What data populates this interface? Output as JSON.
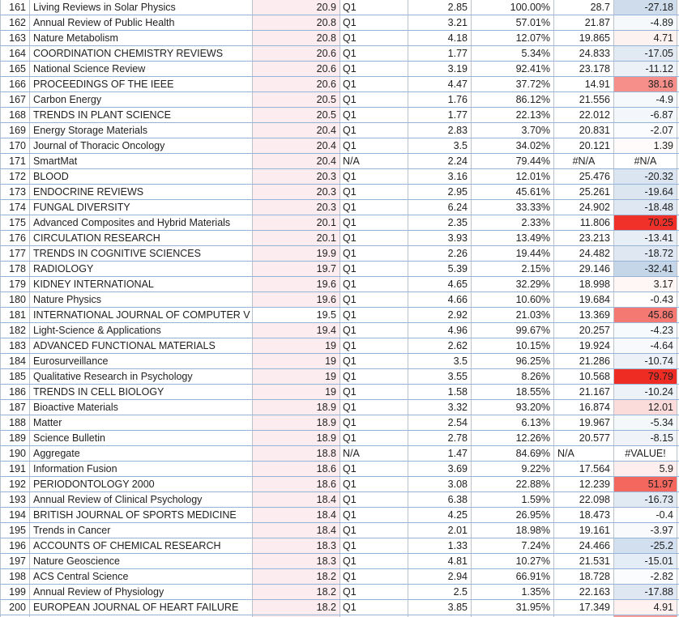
{
  "colors": {
    "score_fill": "#fcecef",
    "grid_horizontal": "#95b3d7",
    "grid_vertical": "#bcc2ca",
    "text": "#1f1f1f",
    "change_red_max": "#ee2c23",
    "change_blue_max": "#c5d6e9"
  },
  "table": {
    "rows": [
      {
        "rank": "161",
        "journal": "Living Reviews in Solar Physics",
        "impact": "20.9",
        "quartile": "Q1",
        "value1": "2.85",
        "percent": "100.00%",
        "value2": "28.7",
        "change": "-27.18",
        "change_bg": "#cfdcec"
      },
      {
        "rank": "162",
        "journal": "Annual Review of Public Health",
        "impact": "20.8",
        "quartile": "Q1",
        "value1": "3.21",
        "percent": "57.01%",
        "value2": "21.87",
        "change": "-4.89",
        "change_bg": "#f6f9fc"
      },
      {
        "rank": "163",
        "journal": "Nature Metabolism",
        "impact": "20.8",
        "quartile": "Q1",
        "value1": "4.18",
        "percent": "12.07%",
        "value2": "19.865",
        "change": "4.71",
        "change_bg": "#fef2f1"
      },
      {
        "rank": "164",
        "journal": "COORDINATION CHEMISTRY REVIEWS",
        "impact": "20.6",
        "quartile": "Q1",
        "value1": "1.77",
        "percent": "5.34%",
        "value2": "24.833",
        "change": "-17.05",
        "change_bg": "#e1e9f3"
      },
      {
        "rank": "165",
        "journal": "National Science Review",
        "impact": "20.6",
        "quartile": "Q1",
        "value1": "3.19",
        "percent": "92.41%",
        "value2": "23.178",
        "change": "-11.12",
        "change_bg": "#ebf1f7"
      },
      {
        "rank": "166",
        "journal": "PROCEEDINGS OF THE IEEE",
        "impact": "20.6",
        "quartile": "Q1",
        "value1": "4.47",
        "percent": "37.72%",
        "value2": "14.91",
        "change": "38.16",
        "change_bg": "#f68f8a"
      },
      {
        "rank": "167",
        "journal": "Carbon Energy",
        "impact": "20.5",
        "quartile": "Q1",
        "value1": "1.76",
        "percent": "86.12%",
        "value2": "21.556",
        "change": "-4.9",
        "change_bg": "#f6f9fc"
      },
      {
        "rank": "168",
        "journal": "TRENDS IN PLANT SCIENCE",
        "impact": "20.5",
        "quartile": "Q1",
        "value1": "1.77",
        "percent": "22.13%",
        "value2": "22.012",
        "change": "-6.87",
        "change_bg": "#f3f6fa"
      },
      {
        "rank": "169",
        "journal": "Energy Storage Materials",
        "impact": "20.4",
        "quartile": "Q1",
        "value1": "2.83",
        "percent": "3.70%",
        "value2": "20.831",
        "change": "-2.07",
        "change_bg": "#fbfcfe"
      },
      {
        "rank": "170",
        "journal": "Journal of Thoracic Oncology",
        "impact": "20.4",
        "quartile": "Q1",
        "value1": "3.5",
        "percent": "34.02%",
        "value2": "20.121",
        "change": "1.39",
        "change_bg": "#fffbfb"
      },
      {
        "rank": "171",
        "journal": "SmartMat",
        "impact": "20.4",
        "quartile": "N/A",
        "value1": "2.24",
        "percent": "79.44%",
        "value2": "#N/A",
        "change": "#N/A",
        "change_bg": "#ffffff",
        "value2_align": "center",
        "change_align": "center"
      },
      {
        "rank": "172",
        "journal": "BLOOD",
        "impact": "20.3",
        "quartile": "Q1",
        "value1": "3.16",
        "percent": "12.01%",
        "value2": "25.476",
        "change": "-20.32",
        "change_bg": "#dbe5f1"
      },
      {
        "rank": "173",
        "journal": "ENDOCRINE REVIEWS",
        "impact": "20.3",
        "quartile": "Q1",
        "value1": "2.95",
        "percent": "45.61%",
        "value2": "25.261",
        "change": "-19.64",
        "change_bg": "#dce6f1"
      },
      {
        "rank": "174",
        "journal": "FUNGAL DIVERSITY",
        "impact": "20.3",
        "quartile": "Q1",
        "value1": "6.24",
        "percent": "33.33%",
        "value2": "24.902",
        "change": "-18.48",
        "change_bg": "#dee7f2"
      },
      {
        "rank": "175",
        "journal": "Advanced Composites and Hybrid Materials",
        "impact": "20.1",
        "quartile": "Q1",
        "value1": "2.35",
        "percent": "2.33%",
        "value2": "11.806",
        "change": "70.25",
        "change_bg": "#ef312a"
      },
      {
        "rank": "176",
        "journal": "CIRCULATION RESEARCH",
        "impact": "20.1",
        "quartile": "Q1",
        "value1": "3.93",
        "percent": "13.49%",
        "value2": "23.213",
        "change": "-13.41",
        "change_bg": "#e7eef6"
      },
      {
        "rank": "177",
        "journal": "TRENDS IN COGNITIVE SCIENCES",
        "impact": "19.9",
        "quartile": "Q1",
        "value1": "2.26",
        "percent": "19.44%",
        "value2": "24.482",
        "change": "-18.72",
        "change_bg": "#dee7f2"
      },
      {
        "rank": "178",
        "journal": "RADIOLOGY",
        "impact": "19.7",
        "quartile": "Q1",
        "value1": "5.39",
        "percent": "2.15%",
        "value2": "29.146",
        "change": "-32.41",
        "change_bg": "#c5d6e9"
      },
      {
        "rank": "179",
        "journal": "KIDNEY INTERNATIONAL",
        "impact": "19.6",
        "quartile": "Q1",
        "value1": "4.65",
        "percent": "32.29%",
        "value2": "18.998",
        "change": "3.17",
        "change_bg": "#fef7f6"
      },
      {
        "rank": "180",
        "journal": "Nature Physics",
        "impact": "19.6",
        "quartile": "Q1",
        "value1": "4.66",
        "percent": "10.60%",
        "value2": "19.684",
        "change": "-0.43",
        "change_bg": "#fefeff"
      },
      {
        "rank": "181",
        "journal": "INTERNATIONAL JOURNAL OF COMPUTER V",
        "impact": "19.5",
        "quartile": "Q1",
        "value1": "2.92",
        "percent": "21.03%",
        "value2": "13.369",
        "change": "45.86",
        "change_bg": "#f47973",
        "impact_fill": false
      },
      {
        "rank": "182",
        "journal": "Light-Science & Applications",
        "impact": "19.4",
        "quartile": "Q1",
        "value1": "4.96",
        "percent": "99.67%",
        "value2": "20.257",
        "change": "-4.23",
        "change_bg": "#f7fafc"
      },
      {
        "rank": "183",
        "journal": "ADVANCED FUNCTIONAL MATERIALS",
        "impact": "19",
        "quartile": "Q1",
        "value1": "2.62",
        "percent": "10.15%",
        "value2": "19.924",
        "change": "-4.64",
        "change_bg": "#f7f9fc"
      },
      {
        "rank": "184",
        "journal": "Eurosurveillance",
        "impact": "19",
        "quartile": "Q1",
        "value1": "3.5",
        "percent": "96.25%",
        "value2": "21.286",
        "change": "-10.74",
        "change_bg": "#ecf1f8"
      },
      {
        "rank": "185",
        "journal": "Qualitative Research in Psychology",
        "impact": "19",
        "quartile": "Q1",
        "value1": "3.55",
        "percent": "8.26%",
        "value2": "10.568",
        "change": "79.79",
        "change_bg": "#ee2c23"
      },
      {
        "rank": "186",
        "journal": "TRENDS IN CELL BIOLOGY",
        "impact": "19",
        "quartile": "Q1",
        "value1": "1.58",
        "percent": "18.55%",
        "value2": "21.167",
        "change": "-10.24",
        "change_bg": "#edf2f8"
      },
      {
        "rank": "187",
        "journal": "Bioactive Materials",
        "impact": "18.9",
        "quartile": "Q1",
        "value1": "3.32",
        "percent": "93.20%",
        "value2": "16.874",
        "change": "12.01",
        "change_bg": "#fcdcda"
      },
      {
        "rank": "188",
        "journal": "Matter",
        "impact": "18.9",
        "quartile": "Q1",
        "value1": "2.54",
        "percent": "6.13%",
        "value2": "19.967",
        "change": "-5.34",
        "change_bg": "#f5f8fb"
      },
      {
        "rank": "189",
        "journal": "Science Bulletin",
        "impact": "18.9",
        "quartile": "Q1",
        "value1": "2.78",
        "percent": "12.26%",
        "value2": "20.577",
        "change": "-8.15",
        "change_bg": "#f0f4f9"
      },
      {
        "rank": "190",
        "journal": "Aggregate",
        "impact": "18.8",
        "quartile": "N/A",
        "value1": "1.47",
        "percent": "84.69%",
        "value2": "N/A",
        "change": "#VALUE!",
        "change_bg": "#ffffff",
        "value2_align": "left",
        "change_align": "center"
      },
      {
        "rank": "191",
        "journal": "Information Fusion",
        "impact": "18.6",
        "quartile": "Q1",
        "value1": "3.69",
        "percent": "9.22%",
        "value2": "17.564",
        "change": "5.9",
        "change_bg": "#feeeed"
      },
      {
        "rank": "192",
        "journal": "PERIODONTOLOGY 2000",
        "impact": "18.6",
        "quartile": "Q1",
        "value1": "3.08",
        "percent": "22.88%",
        "value2": "12.239",
        "change": "51.97",
        "change_bg": "#f3675f"
      },
      {
        "rank": "193",
        "journal": "Annual Review of Clinical Psychology",
        "impact": "18.4",
        "quartile": "Q1",
        "value1": "6.38",
        "percent": "1.59%",
        "value2": "22.098",
        "change": "-16.73",
        "change_bg": "#e1eaf3"
      },
      {
        "rank": "194",
        "journal": "BRITISH JOURNAL OF SPORTS MEDICINE",
        "impact": "18.4",
        "quartile": "Q1",
        "value1": "4.25",
        "percent": "26.95%",
        "value2": "18.473",
        "change": "-0.4",
        "change_bg": "#fefeff"
      },
      {
        "rank": "195",
        "journal": "Trends in Cancer",
        "impact": "18.4",
        "quartile": "Q1",
        "value1": "2.01",
        "percent": "18.98%",
        "value2": "19.161",
        "change": "-3.97",
        "change_bg": "#f8fafc"
      },
      {
        "rank": "196",
        "journal": "ACCOUNTS OF CHEMICAL RESEARCH",
        "impact": "18.3",
        "quartile": "Q1",
        "value1": "1.33",
        "percent": "7.24%",
        "value2": "24.466",
        "change": "-25.2",
        "change_bg": "#d2dfee"
      },
      {
        "rank": "197",
        "journal": "Nature Geoscience",
        "impact": "18.3",
        "quartile": "Q1",
        "value1": "4.81",
        "percent": "10.27%",
        "value2": "21.531",
        "change": "-15.01",
        "change_bg": "#e4ecf5"
      },
      {
        "rank": "198",
        "journal": "ACS Central Science",
        "impact": "18.2",
        "quartile": "Q1",
        "value1": "2.94",
        "percent": "66.91%",
        "value2": "18.728",
        "change": "-2.82",
        "change_bg": "#fafcfd"
      },
      {
        "rank": "199",
        "journal": "Annual Review of Physiology",
        "impact": "18.2",
        "quartile": "Q1",
        "value1": "2.5",
        "percent": "1.35%",
        "value2": "22.163",
        "change": "-17.88",
        "change_bg": "#dfe8f2"
      },
      {
        "rank": "200",
        "journal": "EUROPEAN JOURNAL OF HEART FAILURE",
        "impact": "18.2",
        "quartile": "Q1",
        "value1": "3.85",
        "percent": "31.95%",
        "value2": "17.349",
        "change": "4.91",
        "change_bg": "#fef1f0"
      }
    ],
    "partial_row": {
      "impact_bg": "#fcecef",
      "change_bg": "#f59e99"
    }
  }
}
